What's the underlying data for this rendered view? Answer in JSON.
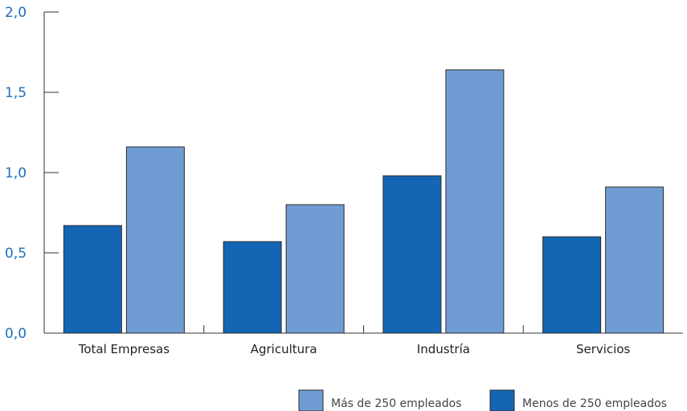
{
  "chart_data": {
    "type": "bar",
    "categories": [
      "Total Empresas",
      "Agricultura",
      "Industría",
      "Servicios"
    ],
    "series": [
      {
        "name": "Menos de 250 empleados",
        "values": [
          0.67,
          0.57,
          0.98,
          0.6
        ],
        "color": "#1466b4"
      },
      {
        "name": "Más de 250 empleados",
        "values": [
          1.16,
          0.8,
          1.64,
          0.91
        ],
        "color": "#6f9dd3"
      }
    ],
    "ylim": [
      0,
      2.0
    ],
    "yticks": [
      "0,0",
      "0,5",
      "1,0",
      "1,5",
      "2,0"
    ],
    "ytick_values": [
      0,
      0.5,
      1.0,
      1.5,
      2.0
    ],
    "legend": [
      {
        "label": "Más de 250 empleados",
        "color": "#6f9dd3"
      },
      {
        "label": "Menos de 250 empleados",
        "color": "#1466b4"
      }
    ],
    "legend_position": "bottom-right",
    "grid": false,
    "title": "",
    "xlabel": "",
    "ylabel": ""
  }
}
